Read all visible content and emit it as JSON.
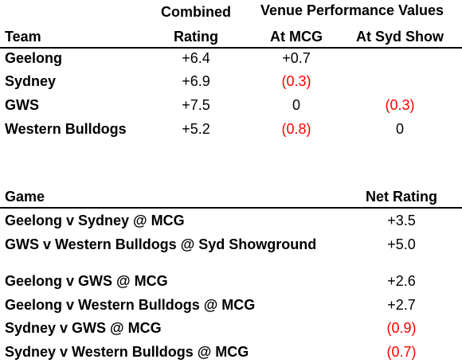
{
  "ratings_table": {
    "headers": {
      "team": "Team",
      "combined_line1": "Combined",
      "combined_line2": "Rating",
      "venue_group": "Venue Performance Values",
      "at_mcg": "At MCG",
      "at_syd_show": "At Syd Show"
    },
    "rows": [
      {
        "team": "Geelong",
        "combined": "+6.4",
        "mcg": "+0.7",
        "mcg_negative": false,
        "syd": "",
        "syd_negative": false
      },
      {
        "team": "Sydney",
        "combined": "+6.9",
        "mcg": "(0.3)",
        "mcg_negative": true,
        "syd": "",
        "syd_negative": false
      },
      {
        "team": "GWS",
        "combined": "+7.5",
        "mcg": "0",
        "mcg_negative": false,
        "syd": "(0.3)",
        "syd_negative": true
      },
      {
        "team": "Western Bulldogs",
        "combined": "+5.2",
        "mcg": "(0.8)",
        "mcg_negative": true,
        "syd": "0",
        "syd_negative": false
      }
    ]
  },
  "games_table": {
    "headers": {
      "game": "Game",
      "net_rating": "Net Rating"
    },
    "rows": [
      {
        "game": "Geelong v Sydney @ MCG",
        "net": "+3.5",
        "negative": false
      },
      {
        "game": "GWS v Western Bulldogs @ Syd Showground",
        "net": "+5.0",
        "negative": false
      },
      {
        "game": "Geelong v GWS @ MCG",
        "net": "+2.6",
        "negative": false
      },
      {
        "game": "Geelong v Western Bulldogs @ MCG",
        "net": "+2.7",
        "negative": false
      },
      {
        "game": "Sydney v GWS @ MCG",
        "net": "(0.9)",
        "negative": true
      },
      {
        "game": "Sydney v Western Bulldogs @ MCG",
        "net": "(0.7)",
        "negative": true
      }
    ]
  },
  "colors": {
    "text": "#000000",
    "negative": "#ff0000",
    "background": "#ffffff"
  }
}
